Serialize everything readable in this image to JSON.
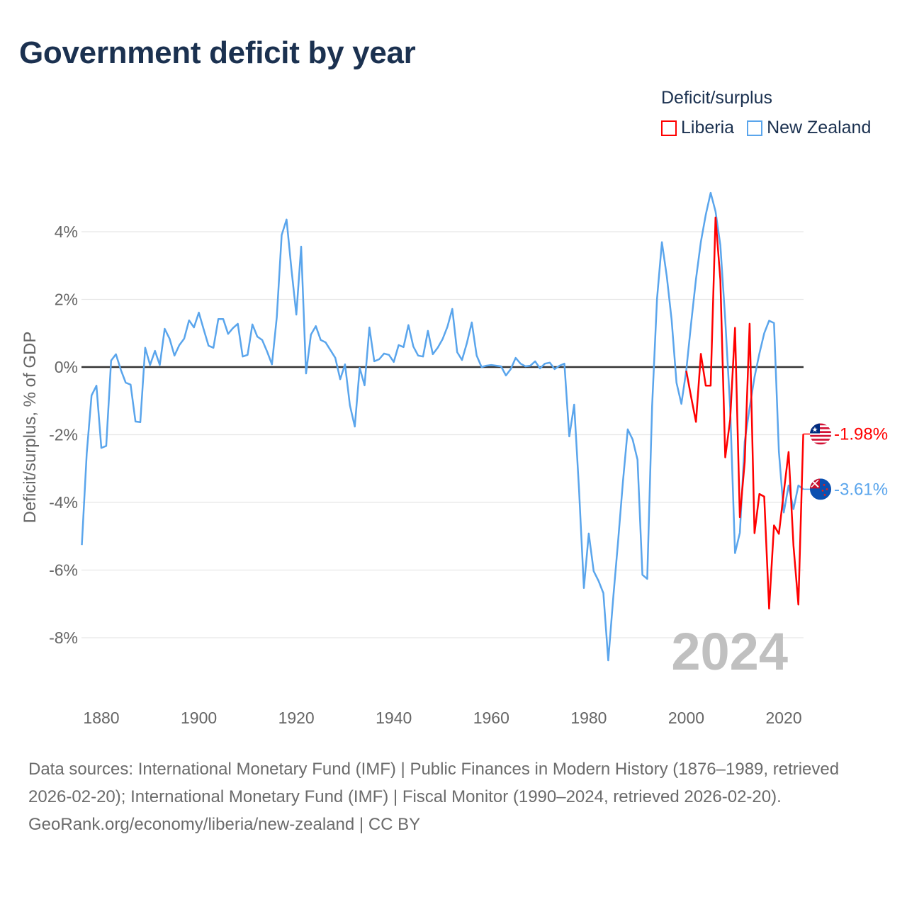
{
  "title": "Government deficit by year",
  "legend": {
    "title": "Deficit/surplus",
    "items": [
      {
        "label": "Liberia",
        "color": "#ff0000"
      },
      {
        "label": "New Zealand",
        "color": "#5aa5ec"
      }
    ]
  },
  "footer": {
    "sources": "Data sources: International Monetary Fund (IMF) | Public Finances in Modern History (1876–1989, retrieved 2026-02-20); International Monetary Fund (IMF) | Fiscal Monitor (1990–2024, retrieved 2026-02-20).",
    "attribution": "GeoRank.org/economy/liberia/new-zealand | CC BY"
  },
  "chart_data": {
    "type": "line",
    "title": "Government deficit by year",
    "xlabel": "",
    "ylabel": "Deficit/surplus, % of GDP",
    "xlim": [
      1876,
      2024
    ],
    "ylim": [
      -9.8,
      5.6
    ],
    "x_ticks": [
      1880,
      1900,
      1920,
      1940,
      1960,
      1980,
      2000,
      2020
    ],
    "y_ticks": [
      -8,
      -6,
      -4,
      -2,
      0,
      2,
      4
    ],
    "y_tick_labels": [
      "-8%",
      "-6%",
      "-4%",
      "-2%",
      "0%",
      "2%",
      "4%"
    ],
    "grid": true,
    "current_year_label": "2024",
    "series": [
      {
        "name": "Liberia",
        "color": "#ff0000",
        "start_year": 2000,
        "values": [
          -0.11,
          -0.89,
          -1.62,
          0.39,
          -0.55,
          -0.55,
          4.42,
          2.58,
          -2.67,
          -1.56,
          1.16,
          -4.44,
          -2.8,
          1.28,
          -4.91,
          -3.75,
          -3.83,
          -7.14,
          -4.68,
          -4.93,
          -3.7,
          -2.51,
          -5.28,
          -7.02,
          -1.98
        ],
        "end_label": "-1.98%",
        "flag": "liberia-flag"
      },
      {
        "name": "New Zealand",
        "color": "#5aa5ec",
        "start_year": 1876,
        "values": [
          -5.26,
          -2.55,
          -0.84,
          -0.55,
          -2.39,
          -2.33,
          0.19,
          0.38,
          -0.08,
          -0.46,
          -0.52,
          -1.61,
          -1.63,
          0.57,
          0.06,
          0.48,
          0.06,
          1.13,
          0.84,
          0.34,
          0.65,
          0.84,
          1.38,
          1.17,
          1.61,
          1.11,
          0.63,
          0.57,
          1.42,
          1.42,
          0.98,
          1.15,
          1.28,
          0.31,
          0.36,
          1.26,
          0.9,
          0.8,
          0.46,
          0.08,
          1.47,
          3.9,
          4.36,
          2.89,
          1.55,
          3.56,
          -0.19,
          0.96,
          1.21,
          0.8,
          0.73,
          0.5,
          0.27,
          -0.36,
          0.08,
          -1.13,
          -1.76,
          -0.02,
          -0.54,
          1.17,
          0.17,
          0.23,
          0.4,
          0.36,
          0.15,
          0.65,
          0.59,
          1.24,
          0.61,
          0.34,
          0.31,
          1.07,
          0.38,
          0.57,
          0.82,
          1.19,
          1.72,
          0.44,
          0.21,
          0.71,
          1.32,
          0.34,
          0.0,
          0.04,
          0.06,
          0.04,
          0.02,
          -0.25,
          -0.06,
          0.27,
          0.1,
          0.02,
          0.04,
          0.17,
          -0.04,
          0.1,
          0.13,
          -0.06,
          0.04,
          0.1,
          -2.05,
          -1.11,
          -3.6,
          -6.53,
          -4.92,
          -6.03,
          -6.32,
          -6.68,
          -8.67,
          -6.85,
          -5.17,
          -3.39,
          -1.84,
          -2.14,
          -2.74,
          -6.14,
          -6.26,
          -1.15,
          2.01,
          3.69,
          2.68,
          1.4,
          -0.46,
          -1.09,
          -0.1,
          1.3,
          2.6,
          3.7,
          4.5,
          5.15,
          4.6,
          3.6,
          1.4,
          -1.2,
          -5.5,
          -4.9,
          -2.2,
          -1.2,
          -0.3,
          0.4,
          1.0,
          1.37,
          1.3,
          -2.5,
          -4.3,
          -3.5,
          -4.2,
          -3.5,
          -3.61
        ],
        "end_label": "-3.61%",
        "flag": "new-zealand-flag"
      }
    ]
  }
}
